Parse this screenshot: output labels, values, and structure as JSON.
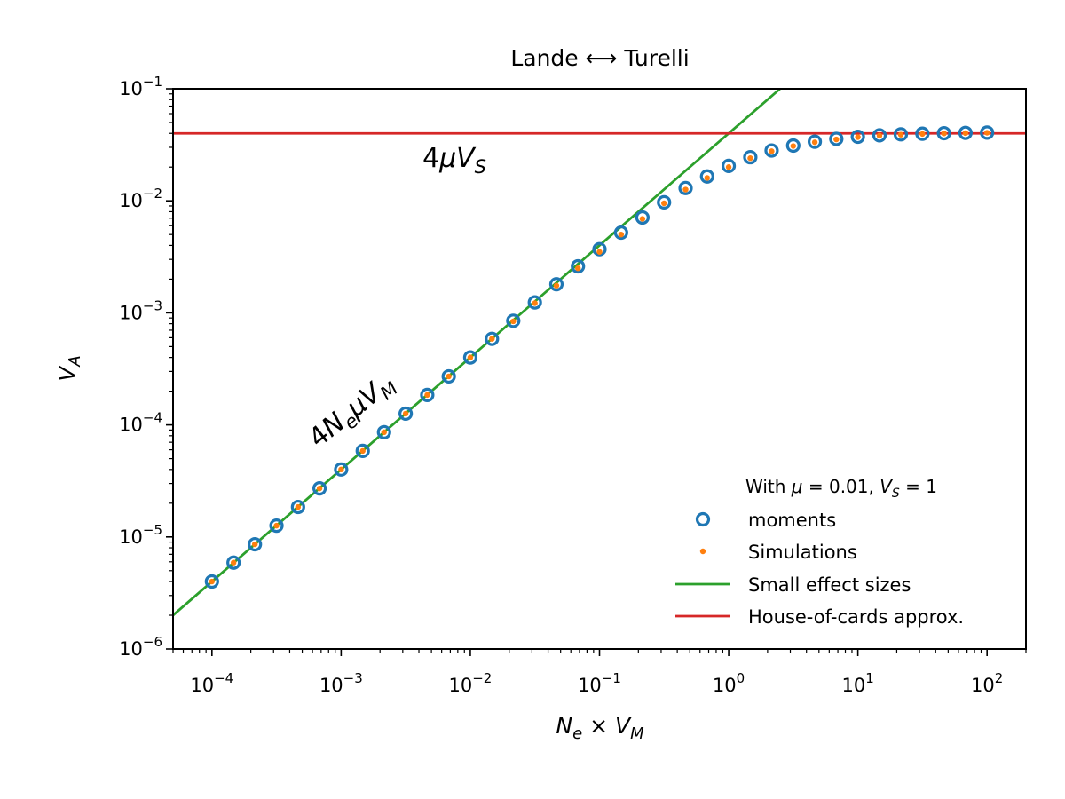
{
  "chart_data": {
    "type": "scatter",
    "title": "Lande ⟷ Turelli",
    "xlabel": "Ne × VM",
    "ylabel": "VA",
    "xscale": "log",
    "yscale": "log",
    "xlim": [
      5e-05,
      200
    ],
    "ylim": [
      1e-06,
      0.1
    ],
    "x_ticks": [
      0.0001,
      0.001,
      0.01,
      0.1,
      1,
      10,
      100
    ],
    "y_ticks": [
      1e-06,
      1e-05,
      0.0001,
      0.001,
      0.01,
      0.1
    ],
    "x_tick_labels": [
      {
        "base": "10",
        "exp": "−4"
      },
      {
        "base": "10",
        "exp": "−3"
      },
      {
        "base": "10",
        "exp": "−2"
      },
      {
        "base": "10",
        "exp": "−1"
      },
      {
        "base": "10",
        "exp": "0"
      },
      {
        "base": "10",
        "exp": "1"
      },
      {
        "base": "10",
        "exp": "2"
      }
    ],
    "y_tick_labels": [
      {
        "base": "10",
        "exp": "−6"
      },
      {
        "base": "10",
        "exp": "−5"
      },
      {
        "base": "10",
        "exp": "−4"
      },
      {
        "base": "10",
        "exp": "−3"
      },
      {
        "base": "10",
        "exp": "−2"
      },
      {
        "base": "10",
        "exp": "−1"
      }
    ],
    "legend": {
      "title": "With μ = 0.01, VS = 1",
      "placement": "lower-right",
      "entries": [
        "moments",
        "Simulations",
        "Small effect sizes",
        "House-of-cards approx."
      ]
    },
    "annotations": [
      "4μVS",
      "4NeμVM"
    ],
    "parameters": {
      "mu": 0.01,
      "VS": 1
    },
    "series": [
      {
        "name": "moments",
        "marker": "open-circle",
        "color": "#1f77b4",
        "x": [
          0.0001,
          0.000147,
          0.000215,
          0.000316,
          0.000464,
          0.000681,
          0.001,
          0.00147,
          0.00215,
          0.00316,
          0.00464,
          0.00681,
          0.01,
          0.0147,
          0.0215,
          0.0316,
          0.0464,
          0.0681,
          0.1,
          0.147,
          0.215,
          0.316,
          0.464,
          0.681,
          1,
          1.47,
          2.15,
          3.16,
          4.64,
          6.81,
          10,
          14.7,
          21.5,
          31.6,
          46.4,
          68.1,
          100
        ],
        "y": [
          4e-06,
          5.9e-06,
          8.6e-06,
          1.26e-05,
          1.85e-05,
          2.71e-05,
          4e-05,
          5.86e-05,
          8.6e-05,
          0.000126,
          0.000185,
          0.000271,
          0.0004,
          0.000586,
          0.00085,
          0.00124,
          0.0018,
          0.0026,
          0.0037,
          0.0052,
          0.0071,
          0.0097,
          0.013,
          0.0165,
          0.0205,
          0.0245,
          0.0281,
          0.0311,
          0.0337,
          0.0357,
          0.0373,
          0.0384,
          0.0392,
          0.0397,
          0.0401,
          0.0404,
          0.0406
        ]
      },
      {
        "name": "Simulations",
        "marker": "dot",
        "color": "#ff7f0e",
        "x": [
          0.0001,
          0.000147,
          0.000215,
          0.000316,
          0.000464,
          0.000681,
          0.001,
          0.00147,
          0.00215,
          0.00316,
          0.00464,
          0.00681,
          0.01,
          0.0147,
          0.0215,
          0.0316,
          0.0464,
          0.0681,
          0.1,
          0.147,
          0.215,
          0.316,
          0.464,
          0.681,
          1,
          1.47,
          2.15,
          3.16,
          4.64,
          6.81,
          10,
          14.7,
          21.5,
          31.6,
          46.4,
          68.1,
          100
        ],
        "y": [
          4e-06,
          5.9e-06,
          8.6e-06,
          1.26e-05,
          1.85e-05,
          2.71e-05,
          4e-05,
          5.86e-05,
          8.6e-05,
          0.000126,
          0.000185,
          0.000271,
          0.0004,
          0.000586,
          0.00084,
          0.00122,
          0.00175,
          0.0025,
          0.0035,
          0.005,
          0.0069,
          0.0095,
          0.0126,
          0.016,
          0.02,
          0.024,
          0.0277,
          0.0308,
          0.0333,
          0.0353,
          0.037,
          0.0381,
          0.0389,
          0.0395,
          0.0399,
          0.0402,
          0.0405
        ]
      },
      {
        "name": "Small effect sizes",
        "type": "line",
        "color": "#2ca02c",
        "x": [
          5e-05,
          2.5
        ],
        "y": [
          2e-06,
          0.1
        ]
      },
      {
        "name": "House-of-cards approx.",
        "type": "line",
        "color": "#d62728",
        "x": [
          5e-05,
          200
        ],
        "y": [
          0.04,
          0.04
        ]
      }
    ]
  }
}
